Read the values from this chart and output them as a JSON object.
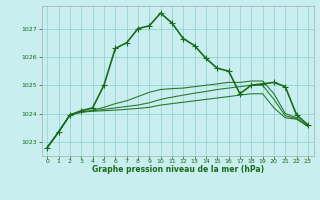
{
  "title": "Graphe pression niveau de la mer (hPa)",
  "background_color": "#c8eef0",
  "grid_color": "#88cccc",
  "xlim": [
    -0.5,
    23.5
  ],
  "ylim": [
    1022.5,
    1027.8
  ],
  "yticks": [
    1023,
    1024,
    1025,
    1026,
    1027
  ],
  "xticks": [
    0,
    1,
    2,
    3,
    4,
    5,
    6,
    7,
    8,
    9,
    10,
    11,
    12,
    13,
    14,
    15,
    16,
    17,
    18,
    19,
    20,
    21,
    22,
    23
  ],
  "series_main": {
    "x": [
      0,
      1,
      2,
      3,
      4,
      5,
      6,
      7,
      8,
      9,
      10,
      11,
      12,
      13,
      14,
      15,
      16,
      17,
      18,
      19,
      20,
      21,
      22,
      23
    ],
    "y": [
      1022.8,
      1023.35,
      1023.95,
      1024.1,
      1024.2,
      1025.0,
      1026.3,
      1026.5,
      1027.0,
      1027.1,
      1027.55,
      1027.2,
      1026.65,
      1026.4,
      1025.95,
      1025.6,
      1025.5,
      1024.7,
      1025.0,
      1025.05,
      1025.1,
      1024.95,
      1023.95,
      1023.6
    ],
    "color": "#1a6b1a",
    "lw": 1.2,
    "marker": "+",
    "ms": 4
  },
  "series_envelope": [
    {
      "x": [
        0,
        1,
        2,
        3,
        4,
        5,
        6,
        7,
        8,
        9,
        10,
        11,
        12,
        13,
        14,
        15,
        16,
        17,
        18,
        19,
        20,
        21,
        22,
        23
      ],
      "y": [
        1022.8,
        1023.35,
        1023.95,
        1024.05,
        1024.08,
        1024.1,
        1024.12,
        1024.15,
        1024.18,
        1024.22,
        1024.3,
        1024.35,
        1024.4,
        1024.45,
        1024.5,
        1024.55,
        1024.6,
        1024.65,
        1024.7,
        1024.7,
        1024.2,
        1023.85,
        1023.8,
        1023.55
      ],
      "color": "#2d7a2d",
      "lw": 0.8
    },
    {
      "x": [
        0,
        1,
        2,
        3,
        4,
        5,
        6,
        7,
        8,
        9,
        10,
        11,
        12,
        13,
        14,
        15,
        16,
        17,
        18,
        19,
        20,
        21,
        22,
        23
      ],
      "y": [
        1022.8,
        1023.35,
        1023.95,
        1024.05,
        1024.1,
        1024.15,
        1024.2,
        1024.25,
        1024.3,
        1024.38,
        1024.5,
        1024.58,
        1024.65,
        1024.72,
        1024.78,
        1024.85,
        1024.9,
        1024.95,
        1025.0,
        1025.0,
        1024.5,
        1023.92,
        1023.82,
        1023.55
      ],
      "color": "#2d7a2d",
      "lw": 0.8
    },
    {
      "x": [
        0,
        1,
        2,
        3,
        4,
        5,
        6,
        7,
        8,
        9,
        10,
        11,
        12,
        13,
        14,
        15,
        16,
        17,
        18,
        19,
        20,
        21,
        22,
        23
      ],
      "y": [
        1022.8,
        1023.35,
        1023.95,
        1024.05,
        1024.12,
        1024.22,
        1024.35,
        1024.45,
        1024.6,
        1024.75,
        1024.85,
        1024.88,
        1024.9,
        1024.95,
        1025.0,
        1025.05,
        1025.1,
        1025.1,
        1025.15,
        1025.15,
        1024.7,
        1024.0,
        1023.85,
        1023.55
      ],
      "color": "#2d7a2d",
      "lw": 0.8
    }
  ]
}
